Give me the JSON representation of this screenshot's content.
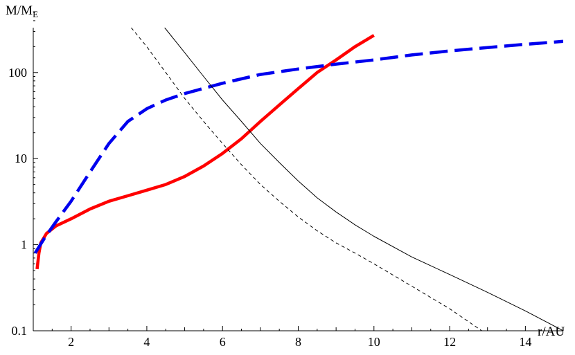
{
  "chart_data": {
    "type": "line",
    "title": "",
    "xlabel": "r/AU",
    "ylabel": {
      "base": "M/M",
      "subscript": "E"
    },
    "xlim": [
      1,
      15
    ],
    "ylim": [
      0.1,
      600
    ],
    "yscale": "log",
    "grid": false,
    "legend": "none",
    "x_ticks": [
      2,
      4,
      6,
      8,
      10,
      12,
      14
    ],
    "y_ticks": [
      {
        "value": 0.1,
        "label": "0.1"
      },
      {
        "value": 1,
        "label": "1"
      },
      {
        "value": 10,
        "label": "10"
      },
      {
        "value": 100,
        "label": "100"
      }
    ],
    "series": [
      {
        "color": "#ff0000",
        "style": "solid-thick",
        "points": [
          [
            1.1,
            0.52
          ],
          [
            1.15,
            0.8
          ],
          [
            1.2,
            1.05
          ],
          [
            1.35,
            1.35
          ],
          [
            1.6,
            1.65
          ],
          [
            2.0,
            2.0
          ],
          [
            2.5,
            2.6
          ],
          [
            3.0,
            3.2
          ],
          [
            3.5,
            3.7
          ],
          [
            4.0,
            4.3
          ],
          [
            4.5,
            5.0
          ],
          [
            5.0,
            6.2
          ],
          [
            5.5,
            8.2
          ],
          [
            6.0,
            11.5
          ],
          [
            6.5,
            17
          ],
          [
            7.0,
            27
          ],
          [
            7.5,
            42
          ],
          [
            8.0,
            65
          ],
          [
            8.5,
            100
          ],
          [
            9.0,
            140
          ],
          [
            9.5,
            200
          ],
          [
            10.0,
            270
          ]
        ]
      },
      {
        "color": "#0000ee",
        "style": "dashed-thick",
        "points": [
          [
            1.05,
            0.8
          ],
          [
            1.3,
            1.2
          ],
          [
            1.6,
            1.85
          ],
          [
            2.0,
            3.2
          ],
          [
            2.5,
            7
          ],
          [
            3.0,
            15
          ],
          [
            3.5,
            27
          ],
          [
            4.0,
            38
          ],
          [
            4.5,
            48
          ],
          [
            5.0,
            57
          ],
          [
            6.0,
            75
          ],
          [
            7.0,
            95
          ],
          [
            8.0,
            110
          ],
          [
            9.0,
            125
          ],
          [
            10.0,
            140
          ],
          [
            11.0,
            160
          ],
          [
            12.0,
            178
          ],
          [
            13.0,
            195
          ],
          [
            14.0,
            213
          ],
          [
            15.0,
            230
          ]
        ]
      },
      {
        "color": "#000000",
        "style": "solid-thin",
        "points": [
          [
            4.0,
            600
          ],
          [
            4.5,
            320
          ],
          [
            5.0,
            170
          ],
          [
            5.5,
            90
          ],
          [
            6.0,
            48
          ],
          [
            6.5,
            27
          ],
          [
            7.0,
            15
          ],
          [
            7.5,
            9
          ],
          [
            8.0,
            5.5
          ],
          [
            8.5,
            3.5
          ],
          [
            9.0,
            2.4
          ],
          [
            9.5,
            1.7
          ],
          [
            10.0,
            1.25
          ],
          [
            11.0,
            0.72
          ],
          [
            12.0,
            0.45
          ],
          [
            13.0,
            0.28
          ],
          [
            14.0,
            0.17
          ],
          [
            15.0,
            0.1
          ]
        ]
      },
      {
        "color": "#000000",
        "style": "dashed-thin",
        "points": [
          [
            2.8,
            600
          ],
          [
            3.2,
            480
          ],
          [
            3.5,
            370
          ],
          [
            4.0,
            200
          ],
          [
            4.5,
            100
          ],
          [
            5.0,
            50
          ],
          [
            5.5,
            27
          ],
          [
            6.0,
            15
          ],
          [
            6.5,
            8.5
          ],
          [
            7.0,
            5
          ],
          [
            7.5,
            3.2
          ],
          [
            8.0,
            2.1
          ],
          [
            8.5,
            1.45
          ],
          [
            9.0,
            1.05
          ],
          [
            9.5,
            0.8
          ],
          [
            10.0,
            0.6
          ],
          [
            11.0,
            0.33
          ],
          [
            12.0,
            0.18
          ],
          [
            12.85,
            0.1
          ]
        ]
      }
    ]
  }
}
